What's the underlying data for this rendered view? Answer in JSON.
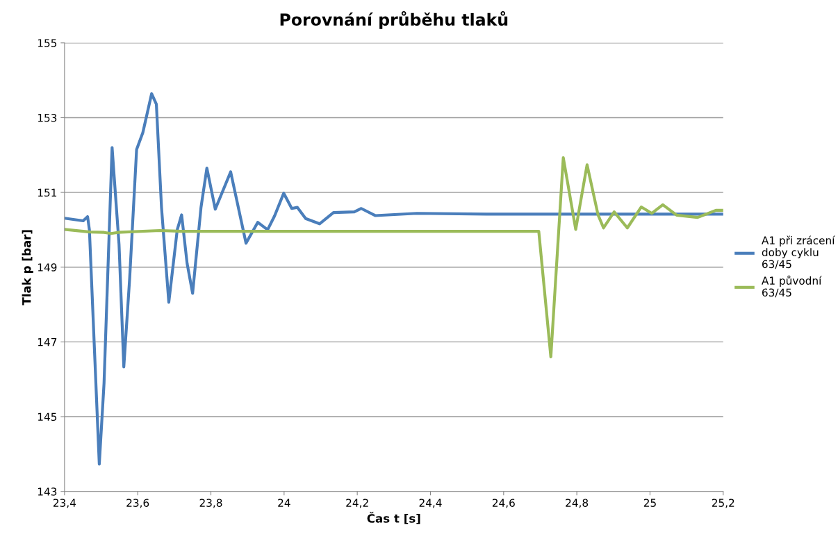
{
  "chart_data": {
    "type": "line",
    "title": "Porovnání průběhu tlaků",
    "xlabel": "Čas t [s]",
    "ylabel": "Tlak p [bar]",
    "xlim": [
      23.4,
      25.2
    ],
    "xticks": [
      {
        "value": 23.4,
        "label": "23,4"
      },
      {
        "value": 23.6,
        "label": "23,6"
      },
      {
        "value": 23.8,
        "label": "23,8"
      },
      24,
      {
        "value": 24.2,
        "label": "24,2"
      },
      {
        "value": 24.4,
        "label": "24,4"
      },
      {
        "value": 24.6,
        "label": "24,6"
      },
      {
        "value": 24.8,
        "label": "24,8"
      },
      25,
      {
        "value": 25.2,
        "label": "25,2"
      }
    ],
    "ylim": [
      143,
      155
    ],
    "yticks": [
      143,
      145,
      147,
      149,
      151,
      153,
      155
    ],
    "grid": "y",
    "legend": "right",
    "marker": "none",
    "line_style": "solid",
    "series": [
      {
        "name": "A1 při zrácení doby cyklu 63/45",
        "color": "#4a7ebb",
        "x": [
          23.4,
          23.451,
          23.463,
          23.468,
          23.495,
          23.508,
          23.53,
          23.549,
          23.562,
          23.578,
          23.597,
          23.614,
          23.638,
          23.651,
          23.665,
          23.685,
          23.708,
          23.72,
          23.735,
          23.75,
          23.773,
          23.789,
          23.812,
          23.854,
          23.896,
          23.928,
          23.955,
          23.974,
          23.999,
          24.021,
          24.036,
          24.059,
          24.097,
          24.135,
          24.192,
          24.211,
          24.249,
          24.363,
          24.553,
          25.2
        ],
        "values": [
          150.31,
          150.24,
          150.35,
          150.0,
          143.73,
          145.9,
          152.2,
          149.6,
          146.33,
          148.7,
          152.15,
          152.6,
          153.64,
          153.36,
          150.6,
          148.06,
          150.0,
          150.4,
          149.1,
          148.3,
          150.6,
          151.65,
          150.55,
          151.55,
          149.64,
          150.2,
          150.0,
          150.37,
          150.98,
          150.57,
          150.6,
          150.3,
          150.16,
          150.46,
          150.48,
          150.57,
          150.38,
          150.44,
          150.42,
          150.42
        ]
      },
      {
        "name": "A1 původní 63/45",
        "color": "#9bbb59",
        "x": [
          23.4,
          23.47,
          23.508,
          23.527,
          23.546,
          23.66,
          23.717,
          23.793,
          24.696,
          24.729,
          24.763,
          24.797,
          24.828,
          24.858,
          24.873,
          24.902,
          24.938,
          24.976,
          25.005,
          25.035,
          25.073,
          25.13,
          25.18,
          25.2
        ],
        "values": [
          150.01,
          149.94,
          149.93,
          149.9,
          149.93,
          149.98,
          149.96,
          149.96,
          149.96,
          146.6,
          151.93,
          150.01,
          151.74,
          150.4,
          150.05,
          150.48,
          150.05,
          150.61,
          150.44,
          150.67,
          150.39,
          150.33,
          150.52,
          150.52
        ]
      }
    ]
  }
}
